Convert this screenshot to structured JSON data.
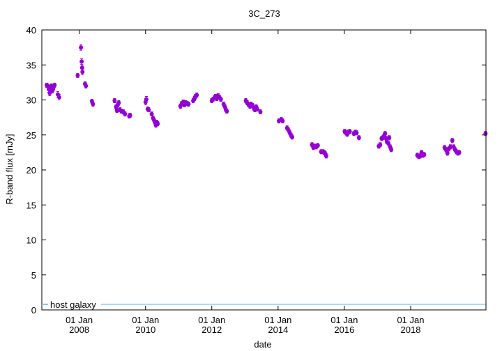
{
  "chart_data": {
    "type": "scatter",
    "title": "3C_273",
    "xlabel": "date",
    "ylabel": "R-band flux [mJy]",
    "ylim": [
      0,
      40
    ],
    "yticks": [
      0,
      5,
      10,
      15,
      20,
      25,
      30,
      35,
      40
    ],
    "xlim": [
      "2006-11-15",
      "2020-04-10"
    ],
    "xticks": [
      {
        "date": "2008-01-01",
        "line1": "01 Jan",
        "line2": "2008"
      },
      {
        "date": "2010-01-01",
        "line1": "01 Jan",
        "line2": "2010"
      },
      {
        "date": "2012-01-01",
        "line1": "01 Jan",
        "line2": "2012"
      },
      {
        "date": "2014-01-01",
        "line1": "01 Jan",
        "line2": "2014"
      },
      {
        "date": "2016-01-01",
        "line1": "01 Jan",
        "line2": "2016"
      },
      {
        "date": "2018-01-01",
        "line1": "01 Jan",
        "line2": "2018"
      }
    ],
    "grid": false,
    "legend_position": "bottom-left",
    "series": [
      {
        "name": "",
        "color": "#9400d3",
        "marker": "circle-with-errorbars",
        "points": [
          [
            "2007-01-08",
            32.1,
            0.3
          ],
          [
            "2007-01-20",
            32.0,
            0.3
          ],
          [
            "2007-02-01",
            31.5,
            0.4
          ],
          [
            "2007-02-10",
            31.0,
            0.4
          ],
          [
            "2007-02-20",
            31.8,
            0.3
          ],
          [
            "2007-03-01",
            32.0,
            0.3
          ],
          [
            "2007-03-10",
            31.3,
            0.3
          ],
          [
            "2007-03-20",
            31.6,
            0.3
          ],
          [
            "2007-04-05",
            32.1,
            0.3
          ],
          [
            "2007-05-10",
            30.8,
            0.4
          ],
          [
            "2007-05-25",
            30.4,
            0.4
          ],
          [
            "2007-12-15",
            33.5,
            0.3
          ],
          [
            "2008-01-20",
            37.5,
            0.4
          ],
          [
            "2008-01-28",
            35.5,
            0.4
          ],
          [
            "2008-02-02",
            34.6,
            0.4
          ],
          [
            "2008-02-06",
            34.0,
            0.4
          ],
          [
            "2008-03-05",
            32.3,
            0.3
          ],
          [
            "2008-03-15",
            32.0,
            0.3
          ],
          [
            "2008-05-20",
            29.8,
            0.3
          ],
          [
            "2008-06-01",
            29.4,
            0.3
          ],
          [
            "2009-01-25",
            29.9,
            0.3
          ],
          [
            "2009-02-10",
            29.0,
            0.3
          ],
          [
            "2009-02-20",
            28.5,
            0.3
          ],
          [
            "2009-03-01",
            29.3,
            0.3
          ],
          [
            "2009-03-12",
            29.6,
            0.3
          ],
          [
            "2009-03-25",
            28.6,
            0.3
          ],
          [
            "2009-04-10",
            28.4,
            0.3
          ],
          [
            "2009-05-01",
            28.3,
            0.3
          ],
          [
            "2009-05-20",
            28.0,
            0.3
          ],
          [
            "2009-07-05",
            27.7,
            0.3
          ],
          [
            "2009-07-15",
            27.8,
            0.3
          ],
          [
            "2010-01-01",
            29.7,
            0.4
          ],
          [
            "2010-01-10",
            30.1,
            0.4
          ],
          [
            "2010-01-25",
            28.7,
            0.3
          ],
          [
            "2010-02-05",
            28.6,
            0.3
          ],
          [
            "2010-03-10",
            28.0,
            0.3
          ],
          [
            "2010-03-25",
            27.4,
            0.3
          ],
          [
            "2010-04-05",
            27.1,
            0.3
          ],
          [
            "2010-04-15",
            26.8,
            0.3
          ],
          [
            "2010-04-25",
            26.4,
            0.3
          ],
          [
            "2010-05-05",
            26.8,
            0.3
          ],
          [
            "2010-05-15",
            26.6,
            0.3
          ],
          [
            "2011-01-20",
            29.1,
            0.3
          ],
          [
            "2011-02-05",
            29.5,
            0.3
          ],
          [
            "2011-02-20",
            29.7,
            0.3
          ],
          [
            "2011-03-05",
            29.3,
            0.3
          ],
          [
            "2011-03-20",
            29.6,
            0.3
          ],
          [
            "2011-04-05",
            29.5,
            0.3
          ],
          [
            "2011-04-20",
            29.4,
            0.3
          ],
          [
            "2011-06-10",
            29.9,
            0.3
          ],
          [
            "2011-06-25",
            30.2,
            0.3
          ],
          [
            "2011-07-05",
            30.5,
            0.3
          ],
          [
            "2011-07-20",
            30.7,
            0.3
          ],
          [
            "2012-01-01",
            29.9,
            0.3
          ],
          [
            "2012-01-15",
            30.1,
            0.3
          ],
          [
            "2012-01-30",
            30.3,
            0.3
          ],
          [
            "2012-02-10",
            30.5,
            0.3
          ],
          [
            "2012-02-25",
            30.2,
            0.3
          ],
          [
            "2012-03-10",
            30.6,
            0.3
          ],
          [
            "2012-03-25",
            30.4,
            0.3
          ],
          [
            "2012-04-10",
            30.1,
            0.3
          ],
          [
            "2012-05-10",
            29.4,
            0.3
          ],
          [
            "2012-05-25",
            29.0,
            0.3
          ],
          [
            "2012-06-05",
            28.6,
            0.3
          ],
          [
            "2012-06-15",
            28.4,
            0.3
          ],
          [
            "2013-01-10",
            29.9,
            0.3
          ],
          [
            "2013-01-25",
            29.6,
            0.3
          ],
          [
            "2013-02-10",
            29.3,
            0.3
          ],
          [
            "2013-02-25",
            29.1,
            0.3
          ],
          [
            "2013-03-10",
            29.4,
            0.3
          ],
          [
            "2013-03-25",
            29.2,
            0.3
          ],
          [
            "2013-04-10",
            28.8,
            0.3
          ],
          [
            "2013-04-20",
            28.6,
            0.3
          ],
          [
            "2013-05-05",
            29.0,
            0.3
          ],
          [
            "2013-05-15",
            28.7,
            0.3
          ],
          [
            "2013-06-20",
            28.3,
            0.3
          ],
          [
            "2014-01-10",
            27.0,
            0.3
          ],
          [
            "2014-02-05",
            27.2,
            0.3
          ],
          [
            "2014-02-20",
            27.0,
            0.3
          ],
          [
            "2014-04-10",
            26.0,
            0.3
          ],
          [
            "2014-04-25",
            25.7,
            0.3
          ],
          [
            "2014-05-10",
            25.3,
            0.3
          ],
          [
            "2014-05-25",
            24.9,
            0.3
          ],
          [
            "2014-06-05",
            24.7,
            0.3
          ],
          [
            "2015-01-10",
            23.6,
            0.3
          ],
          [
            "2015-01-25",
            23.2,
            0.3
          ],
          [
            "2015-02-10",
            23.4,
            0.3
          ],
          [
            "2015-02-25",
            23.3,
            0.3
          ],
          [
            "2015-03-15",
            23.5,
            0.3
          ],
          [
            "2015-04-20",
            22.6,
            0.3
          ],
          [
            "2015-05-10",
            22.6,
            0.3
          ],
          [
            "2015-05-25",
            22.5,
            0.3
          ],
          [
            "2015-06-05",
            22.3,
            0.3
          ],
          [
            "2015-06-15",
            22.0,
            0.3
          ],
          [
            "2016-01-05",
            25.5,
            0.3
          ],
          [
            "2016-01-20",
            25.3,
            0.3
          ],
          [
            "2016-02-01",
            25.1,
            0.3
          ],
          [
            "2016-02-15",
            25.4,
            0.3
          ],
          [
            "2016-03-01",
            25.5,
            0.3
          ],
          [
            "2016-04-15",
            25.2,
            0.3
          ],
          [
            "2016-05-01",
            25.4,
            0.3
          ],
          [
            "2016-05-15",
            25.3,
            0.3
          ],
          [
            "2016-06-10",
            24.6,
            0.3
          ],
          [
            "2017-01-15",
            23.4,
            0.3
          ],
          [
            "2017-01-30",
            23.6,
            0.3
          ],
          [
            "2017-02-15",
            24.5,
            0.3
          ],
          [
            "2017-03-01",
            24.6,
            0.3
          ],
          [
            "2017-03-15",
            24.9,
            0.3
          ],
          [
            "2017-03-25",
            25.2,
            0.3
          ],
          [
            "2017-04-05",
            24.5,
            0.3
          ],
          [
            "2017-04-15",
            24.0,
            0.3
          ],
          [
            "2017-05-01",
            23.8,
            0.3
          ],
          [
            "2017-05-10",
            24.6,
            0.3
          ],
          [
            "2017-05-20",
            23.3,
            0.3
          ],
          [
            "2017-06-01",
            22.9,
            0.3
          ],
          [
            "2018-03-15",
            22.1,
            0.3
          ],
          [
            "2018-04-01",
            21.9,
            0.3
          ],
          [
            "2018-04-15",
            22.0,
            0.3
          ],
          [
            "2018-05-01",
            22.5,
            0.3
          ],
          [
            "2018-05-15",
            22.1,
            0.3
          ],
          [
            "2018-05-30",
            22.2,
            0.3
          ],
          [
            "2019-01-10",
            23.2,
            0.3
          ],
          [
            "2019-01-25",
            22.9,
            0.3
          ],
          [
            "2019-02-10",
            22.4,
            0.3
          ],
          [
            "2019-02-25",
            23.0,
            0.3
          ],
          [
            "2019-03-15",
            23.3,
            0.3
          ],
          [
            "2019-04-05",
            24.2,
            0.3
          ],
          [
            "2019-04-20",
            23.3,
            0.3
          ],
          [
            "2019-05-05",
            22.9,
            0.3
          ],
          [
            "2019-05-20",
            22.6,
            0.3
          ],
          [
            "2019-06-05",
            22.4,
            0.3
          ],
          [
            "2019-06-20",
            22.5,
            0.3
          ],
          [
            "2020-04-05",
            25.2,
            0.3
          ]
        ]
      },
      {
        "name": "host galaxy",
        "color": "#56b4e9",
        "type": "line",
        "y": 0.8
      }
    ]
  }
}
